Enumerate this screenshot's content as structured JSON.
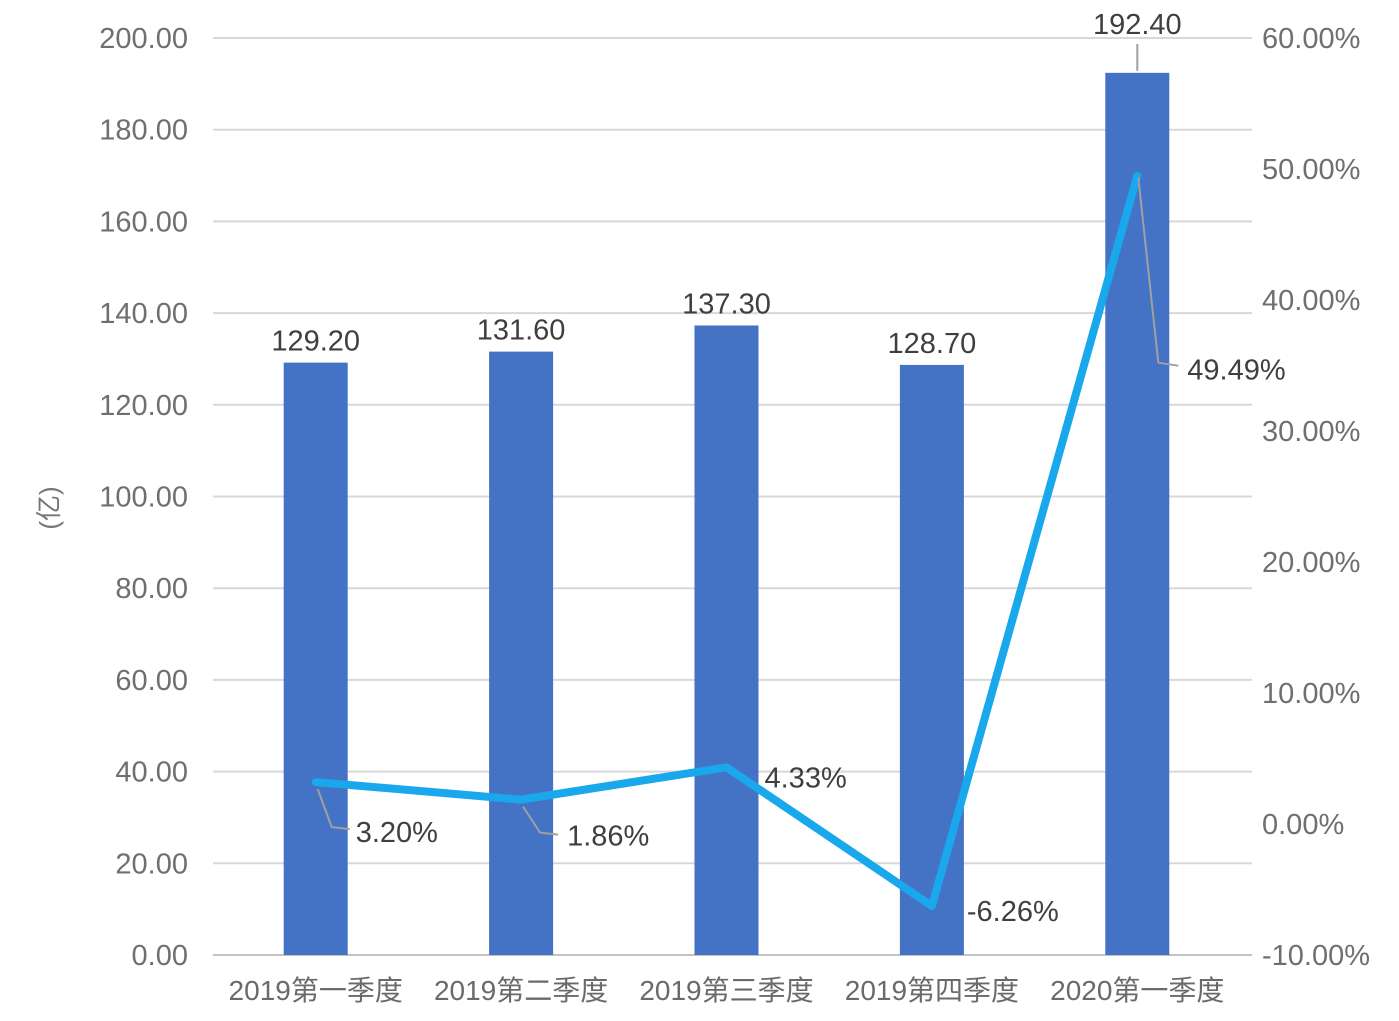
{
  "chart_data": {
    "type": "bar",
    "subtype": "bar-line-combo-dual-axis",
    "title": "",
    "categories": [
      "2019第一季度",
      "2019第二季度",
      "2019第三季度",
      "2019第四季度",
      "2020第一季度"
    ],
    "series": [
      {
        "name": "quarterly-value-bars",
        "type": "bar",
        "values": [
          129.2,
          131.6,
          137.3,
          128.7,
          192.4
        ],
        "data_labels": [
          "129.20",
          "131.60",
          "137.30",
          "128.70",
          "192.40"
        ],
        "axis": "left",
        "color": "#4472c4"
      },
      {
        "name": "growth-rate-line",
        "type": "line",
        "values": [
          3.2,
          1.86,
          4.33,
          -6.26,
          49.49
        ],
        "data_labels": [
          "3.20%",
          "1.86%",
          "4.33%",
          "-6.26%",
          "49.49%"
        ],
        "axis": "right",
        "color": "#19a8ec"
      }
    ],
    "left_axis": {
      "title": "(亿)",
      "min": 0,
      "max": 200,
      "step": 20,
      "tick_labels": [
        "200.00",
        "180.00",
        "160.00",
        "140.00",
        "120.00",
        "100.00",
        "80.00",
        "60.00",
        "40.00",
        "20.00",
        "0.00"
      ]
    },
    "right_axis": {
      "title": "",
      "min": -10,
      "max": 60,
      "step": 10,
      "tick_labels": [
        "60.00%",
        "50.00%",
        "40.00%",
        "30.00%",
        "20.00%",
        "10.00%",
        "0.00%",
        "-10.00%"
      ]
    },
    "grid": true,
    "legend": "none",
    "background": "#ffffff",
    "colors": {
      "bar": "#4472c4",
      "line": "#19a8ec",
      "gridline": "#d8d8d8",
      "baseline": "#c2c2c2",
      "axis_text": "#6f6f6f",
      "data_label_text": "#3f3f3f",
      "leader_line": "#a0a0a0"
    }
  }
}
